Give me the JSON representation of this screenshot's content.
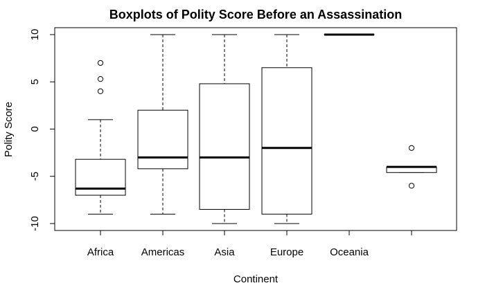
{
  "chart_data": {
    "type": "boxplot",
    "title": "Boxplots of Polity Score Before an Assassination",
    "xlabel": "Continent",
    "ylabel": "Polity Score",
    "ylim": [
      -10.3,
      10.3
    ],
    "yticks": [
      -10,
      -5,
      0,
      5,
      10
    ],
    "categories": [
      "Africa",
      "Americas",
      "Asia",
      "Europe",
      "Oceania",
      ""
    ],
    "grid": false,
    "boxes": [
      {
        "category": "Africa",
        "whisker_low": -9,
        "q1": -7,
        "median": -6.3,
        "q3": -3.2,
        "whisker_high": 1,
        "outliers": [
          4,
          5.3,
          7
        ]
      },
      {
        "category": "Americas",
        "whisker_low": -9,
        "q1": -4.2,
        "median": -3,
        "q3": 2,
        "whisker_high": 10,
        "outliers": []
      },
      {
        "category": "Asia",
        "whisker_low": -10,
        "q1": -8.5,
        "median": -3,
        "q3": 4.8,
        "whisker_high": 10,
        "outliers": []
      },
      {
        "category": "Europe",
        "whisker_low": -10,
        "q1": -9,
        "median": -2,
        "q3": 6.5,
        "whisker_high": 10,
        "outliers": []
      },
      {
        "category": "Oceania",
        "whisker_low": 10,
        "q1": 10,
        "median": 10,
        "q3": 10,
        "whisker_high": 10,
        "outliers": []
      },
      {
        "category": "",
        "whisker_low": -4.6,
        "q1": -4.6,
        "median": -4,
        "q3": -4,
        "whisker_high": -4,
        "outliers": [
          -2,
          -6
        ]
      }
    ]
  }
}
